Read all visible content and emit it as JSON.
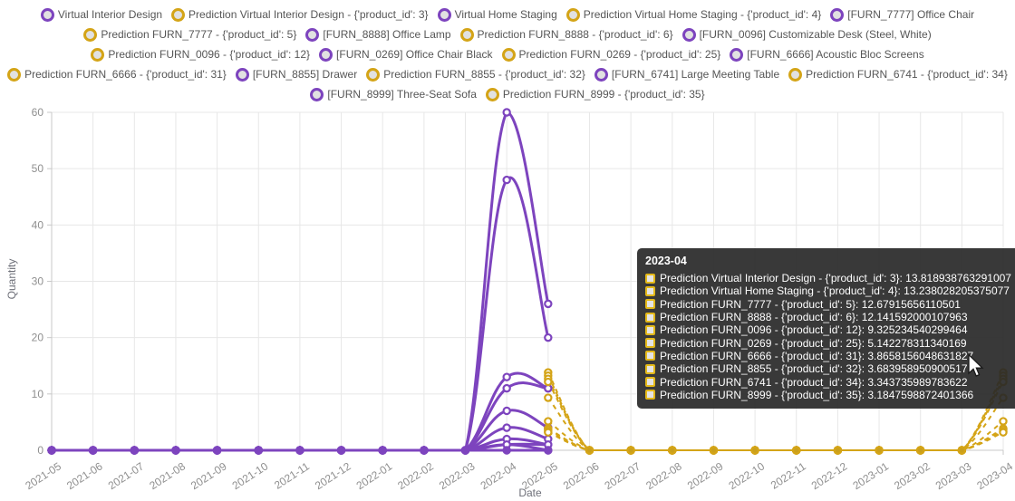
{
  "colors": {
    "actual": "#7D44BE",
    "prediction": "#D4A417",
    "prediction_zero_fill": "#C99F1C",
    "grid": "#e7e7e7",
    "axis": "#c8c8c8",
    "tick_text": "#8f8f8f",
    "legend_text": "#565656",
    "axis_name_text": "#6E7079",
    "tooltip_square_border": "#E3B818"
  },
  "legend": {
    "items": [
      {
        "label": "Virtual Interior Design",
        "role": "actual"
      },
      {
        "label": "Prediction Virtual Interior Design - {'product_id': 3}",
        "role": "prediction"
      },
      {
        "label": "Virtual Home Staging",
        "role": "actual"
      },
      {
        "label": "Prediction Virtual Home Staging - {'product_id': 4}",
        "role": "prediction"
      },
      {
        "label": "[FURN_7777] Office Chair",
        "role": "actual"
      },
      {
        "label": "Prediction FURN_7777 - {'product_id': 5}",
        "role": "prediction"
      },
      {
        "label": "[FURN_8888] Office Lamp",
        "role": "actual"
      },
      {
        "label": "Prediction FURN_8888 - {'product_id': 6}",
        "role": "prediction"
      },
      {
        "label": "[FURN_0096] Customizable Desk (Steel, White)",
        "role": "actual"
      },
      {
        "label": "Prediction FURN_0096 - {'product_id': 12}",
        "role": "prediction"
      },
      {
        "label": "[FURN_0269] Office Chair Black",
        "role": "actual"
      },
      {
        "label": "Prediction FURN_0269 - {'product_id': 25}",
        "role": "prediction"
      },
      {
        "label": "[FURN_6666] Acoustic Bloc Screens",
        "role": "actual"
      },
      {
        "label": "Prediction FURN_6666 - {'product_id': 31}",
        "role": "prediction"
      },
      {
        "label": "[FURN_8855] Drawer",
        "role": "actual"
      },
      {
        "label": "Prediction FURN_8855 - {'product_id': 32}",
        "role": "prediction"
      },
      {
        "label": "[FURN_6741] Large Meeting Table",
        "role": "actual"
      },
      {
        "label": "Prediction FURN_6741 - {'product_id': 34}",
        "role": "prediction"
      },
      {
        "label": "[FURN_8999] Three-Seat Sofa",
        "role": "actual"
      },
      {
        "label": "Prediction FURN_8999 - {'product_id': 35}",
        "role": "prediction"
      }
    ]
  },
  "axes": {
    "y_name": "Quantity",
    "x_name": "Date"
  },
  "chart_data": {
    "type": "line",
    "x": [
      "2021-05",
      "2021-06",
      "2021-07",
      "2021-08",
      "2021-09",
      "2021-10",
      "2021-11",
      "2021-12",
      "2022-01",
      "2022-02",
      "2022-03",
      "2022-04",
      "2022-05",
      "2022-06",
      "2022-07",
      "2022-08",
      "2022-09",
      "2022-10",
      "2022-11",
      "2022-12",
      "2023-01",
      "2023-02",
      "2023-03",
      "2023-04"
    ],
    "xlabel": "Date",
    "ylabel": "Quantity",
    "ylim": [
      0,
      60
    ],
    "yticks": [
      0,
      10,
      20,
      30,
      40,
      50,
      60
    ],
    "grid": true,
    "legend_position": "top",
    "series": [
      {
        "name": "Virtual Interior Design",
        "role": "actual",
        "style": "solid",
        "values": [
          0,
          0,
          0,
          0,
          0,
          0,
          0,
          0,
          0,
          0,
          0,
          60,
          26,
          null,
          null,
          null,
          null,
          null,
          null,
          null,
          null,
          null,
          null,
          null
        ]
      },
      {
        "name": "Virtual Home Staging",
        "role": "actual",
        "style": "solid",
        "values": [
          0,
          0,
          0,
          0,
          0,
          0,
          0,
          0,
          0,
          0,
          0,
          48,
          20,
          null,
          null,
          null,
          null,
          null,
          null,
          null,
          null,
          null,
          null,
          null
        ]
      },
      {
        "name": "[FURN_7777] Office Chair",
        "role": "actual",
        "style": "solid",
        "values": [
          0,
          0,
          0,
          0,
          0,
          0,
          0,
          0,
          0,
          0,
          0,
          13,
          11,
          null,
          null,
          null,
          null,
          null,
          null,
          null,
          null,
          null,
          null,
          null
        ]
      },
      {
        "name": "[FURN_8888] Office Lamp",
        "role": "actual",
        "style": "solid",
        "values": [
          0,
          0,
          0,
          0,
          0,
          0,
          0,
          0,
          0,
          0,
          0,
          11,
          11,
          null,
          null,
          null,
          null,
          null,
          null,
          null,
          null,
          null,
          null,
          null
        ]
      },
      {
        "name": "[FURN_0096] Customizable Desk (Steel, White)",
        "role": "actual",
        "style": "solid",
        "values": [
          0,
          0,
          0,
          0,
          0,
          0,
          0,
          0,
          0,
          0,
          0,
          7,
          4,
          null,
          null,
          null,
          null,
          null,
          null,
          null,
          null,
          null,
          null,
          null
        ]
      },
      {
        "name": "[FURN_0269] Office Chair Black",
        "role": "actual",
        "style": "solid",
        "values": [
          0,
          0,
          0,
          0,
          0,
          0,
          0,
          0,
          0,
          0,
          0,
          4,
          2,
          null,
          null,
          null,
          null,
          null,
          null,
          null,
          null,
          null,
          null,
          null
        ]
      },
      {
        "name": "[FURN_6666] Acoustic Bloc Screens",
        "role": "actual",
        "style": "solid",
        "values": [
          0,
          0,
          0,
          0,
          0,
          0,
          0,
          0,
          0,
          0,
          0,
          2,
          1,
          null,
          null,
          null,
          null,
          null,
          null,
          null,
          null,
          null,
          null,
          null
        ]
      },
      {
        "name": "[FURN_8855] Drawer",
        "role": "actual",
        "style": "solid",
        "values": [
          0,
          0,
          0,
          0,
          0,
          0,
          0,
          0,
          0,
          0,
          0,
          1,
          1,
          null,
          null,
          null,
          null,
          null,
          null,
          null,
          null,
          null,
          null,
          null
        ]
      },
      {
        "name": "[FURN_6741] Large Meeting Table",
        "role": "actual",
        "style": "solid",
        "values": [
          0,
          0,
          0,
          0,
          0,
          0,
          0,
          0,
          0,
          0,
          0,
          1,
          0,
          null,
          null,
          null,
          null,
          null,
          null,
          null,
          null,
          null,
          null,
          null
        ]
      },
      {
        "name": "[FURN_8999] Three-Seat Sofa",
        "role": "actual",
        "style": "solid",
        "values": [
          0,
          0,
          0,
          0,
          0,
          0,
          0,
          0,
          0,
          0,
          0,
          0,
          0,
          null,
          null,
          null,
          null,
          null,
          null,
          null,
          null,
          null,
          null,
          null
        ]
      },
      {
        "name": "Prediction Virtual Interior Design - {'product_id': 3}",
        "role": "prediction",
        "style": "dashed",
        "values": [
          null,
          null,
          null,
          null,
          null,
          null,
          null,
          null,
          null,
          null,
          null,
          null,
          13.818938763291007,
          0,
          0,
          0,
          0,
          0,
          0,
          0,
          0,
          0,
          0,
          13.818938763291007
        ]
      },
      {
        "name": "Prediction Virtual Home Staging - {'product_id': 4}",
        "role": "prediction",
        "style": "dashed",
        "values": [
          null,
          null,
          null,
          null,
          null,
          null,
          null,
          null,
          null,
          null,
          null,
          null,
          13.238028205375077,
          0,
          0,
          0,
          0,
          0,
          0,
          0,
          0,
          0,
          0,
          13.238028205375077
        ]
      },
      {
        "name": "Prediction FURN_7777 - {'product_id': 5}",
        "role": "prediction",
        "style": "dashed",
        "values": [
          null,
          null,
          null,
          null,
          null,
          null,
          null,
          null,
          null,
          null,
          null,
          null,
          12.67915656110501,
          0,
          0,
          0,
          0,
          0,
          0,
          0,
          0,
          0,
          0,
          12.67915656110501
        ]
      },
      {
        "name": "Prediction FURN_8888 - {'product_id': 6}",
        "role": "prediction",
        "style": "dashed",
        "values": [
          null,
          null,
          null,
          null,
          null,
          null,
          null,
          null,
          null,
          null,
          null,
          null,
          12.141592000107963,
          0,
          0,
          0,
          0,
          0,
          0,
          0,
          0,
          0,
          0,
          12.141592000107963
        ]
      },
      {
        "name": "Prediction FURN_0096 - {'product_id': 12}",
        "role": "prediction",
        "style": "dashed",
        "values": [
          null,
          null,
          null,
          null,
          null,
          null,
          null,
          null,
          null,
          null,
          null,
          null,
          9.325234540299464,
          0,
          0,
          0,
          0,
          0,
          0,
          0,
          0,
          0,
          0,
          9.325234540299464
        ]
      },
      {
        "name": "Prediction FURN_0269 - {'product_id': 25}",
        "role": "prediction",
        "style": "dashed",
        "values": [
          null,
          null,
          null,
          null,
          null,
          null,
          null,
          null,
          null,
          null,
          null,
          null,
          5.142278311340169,
          0,
          0,
          0,
          0,
          0,
          0,
          0,
          0,
          0,
          0,
          5.142278311340169
        ]
      },
      {
        "name": "Prediction FURN_6666 - {'product_id': 31}",
        "role": "prediction",
        "style": "dashed",
        "values": [
          null,
          null,
          null,
          null,
          null,
          null,
          null,
          null,
          null,
          null,
          null,
          null,
          3.8658156048631827,
          0,
          0,
          0,
          0,
          0,
          0,
          0,
          0,
          0,
          0,
          3.8658156048631827
        ]
      },
      {
        "name": "Prediction FURN_8855 - {'product_id': 32}",
        "role": "prediction",
        "style": "dashed",
        "values": [
          null,
          null,
          null,
          null,
          null,
          null,
          null,
          null,
          null,
          null,
          null,
          null,
          3.683958950900517,
          0,
          0,
          0,
          0,
          0,
          0,
          0,
          0,
          0,
          0,
          3.683958950900517
        ]
      },
      {
        "name": "Prediction FURN_6741 - {'product_id': 34}",
        "role": "prediction",
        "style": "dashed",
        "values": [
          null,
          null,
          null,
          null,
          null,
          null,
          null,
          null,
          null,
          null,
          null,
          null,
          3.343735989783622,
          0,
          0,
          0,
          0,
          0,
          0,
          0,
          0,
          0,
          0,
          3.343735989783622
        ]
      },
      {
        "name": "Prediction FURN_8999 - {'product_id': 35}",
        "role": "prediction",
        "style": "dashed",
        "values": [
          null,
          null,
          null,
          null,
          null,
          null,
          null,
          null,
          null,
          null,
          null,
          null,
          3.1847598872401366,
          0,
          0,
          0,
          0,
          0,
          0,
          0,
          0,
          0,
          0,
          3.1847598872401366
        ]
      }
    ]
  },
  "tooltip": {
    "title": "2023-04",
    "items": [
      {
        "label": "Prediction Virtual Interior Design - {'product_id': 3}",
        "value": "13.818938763291007"
      },
      {
        "label": "Prediction Virtual Home Staging - {'product_id': 4}",
        "value": "13.238028205375077"
      },
      {
        "label": "Prediction FURN_7777 - {'product_id': 5}",
        "value": "12.67915656110501"
      },
      {
        "label": "Prediction FURN_8888 - {'product_id': 6}",
        "value": "12.141592000107963"
      },
      {
        "label": "Prediction FURN_0096 - {'product_id': 12}",
        "value": "9.325234540299464"
      },
      {
        "label": "Prediction FURN_0269 - {'product_id': 25}",
        "value": "5.142278311340169"
      },
      {
        "label": "Prediction FURN_6666 - {'product_id': 31}",
        "value": "3.8658156048631827"
      },
      {
        "label": "Prediction FURN_8855 - {'product_id': 32}",
        "value": "3.683958950900517"
      },
      {
        "label": "Prediction FURN_6741 - {'product_id': 34}",
        "value": "3.343735989783622"
      },
      {
        "label": "Prediction FURN_8999 - {'product_id': 35}",
        "value": "3.1847598872401366"
      }
    ]
  }
}
